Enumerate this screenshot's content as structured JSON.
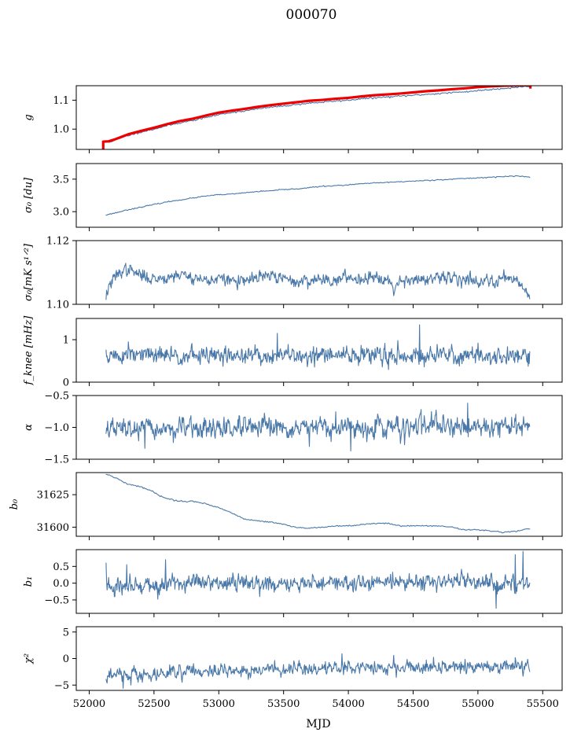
{
  "title": "000070",
  "xlabel": "MJD",
  "colors": {
    "series": "#4a78a8",
    "overlay": "#ee0000"
  },
  "chart_data": [
    {
      "type": "line",
      "key": "g",
      "ylabel": "g",
      "xlim": [
        51900,
        55650
      ],
      "ylim": [
        0.93,
        1.15
      ],
      "yticks": [
        1.0,
        1.1
      ],
      "ytick_labels": [
        "1.0",
        "1.1"
      ],
      "grid": false,
      "series": [
        {
          "color": "#4a78a8",
          "style": "smooth",
          "x": [
            52110,
            52150,
            52200,
            52300,
            52400,
            52500,
            52600,
            52700,
            52800,
            52900,
            53000,
            53100,
            53200,
            53300,
            53400,
            53500,
            53600,
            53700,
            53800,
            53900,
            54000,
            54100,
            54200,
            54300,
            54400,
            54500,
            54600,
            54700,
            54800,
            54900,
            55000,
            55100,
            55200,
            55300,
            55400
          ],
          "y": [
            0.955,
            0.955,
            0.962,
            0.978,
            0.99,
            1.0,
            1.012,
            1.022,
            1.03,
            1.04,
            1.05,
            1.058,
            1.063,
            1.07,
            1.076,
            1.08,
            1.085,
            1.09,
            1.093,
            1.097,
            1.1,
            1.105,
            1.108,
            1.111,
            1.114,
            1.117,
            1.12,
            1.123,
            1.126,
            1.129,
            1.133,
            1.137,
            1.141,
            1.145,
            1.148
          ],
          "noise": 0.0015,
          "seed": 11
        },
        {
          "color": "#ee0000",
          "style": "thick",
          "x": [
            52110,
            52150,
            52200,
            52300,
            52400,
            52500,
            52600,
            52700,
            52800,
            52900,
            53000,
            53100,
            53200,
            53300,
            53400,
            53500,
            53600,
            53700,
            53800,
            53900,
            54000,
            54100,
            54200,
            54300,
            54400,
            54500,
            54600,
            54700,
            54800,
            54900,
            55000,
            55100,
            55200,
            55300,
            55400
          ],
          "y": [
            0.957,
            0.958,
            0.965,
            0.982,
            0.994,
            1.005,
            1.017,
            1.028,
            1.036,
            1.047,
            1.057,
            1.064,
            1.07,
            1.077,
            1.083,
            1.088,
            1.093,
            1.098,
            1.101,
            1.105,
            1.108,
            1.113,
            1.117,
            1.12,
            1.123,
            1.127,
            1.131,
            1.134,
            1.138,
            1.141,
            1.145,
            1.148,
            1.15,
            1.151,
            1.152
          ]
        }
      ],
      "spikes": [
        {
          "x": 52108,
          "y_from": 0.93,
          "y_to": 0.96,
          "color": "#ee0000"
        },
        {
          "x": 55405,
          "y_from": 1.14,
          "y_to": 1.15,
          "color": "#ee0000"
        }
      ]
    },
    {
      "type": "line",
      "key": "sigma0_du",
      "ylabel": "σ₀ [du]",
      "xlim": [
        51900,
        55650
      ],
      "ylim": [
        2.76,
        3.74
      ],
      "yticks": [
        3.0,
        3.5
      ],
      "ytick_labels": [
        "3.0",
        "3.5"
      ],
      "grid": false,
      "series": [
        {
          "color": "#4a78a8",
          "style": "smooth",
          "x": [
            52130,
            52200,
            52300,
            52400,
            52500,
            52600,
            52700,
            52800,
            52900,
            53000,
            53100,
            53200,
            53300,
            53400,
            53500,
            53600,
            53700,
            53800,
            53900,
            54000,
            54100,
            54200,
            54300,
            54400,
            54500,
            54600,
            54700,
            54800,
            54900,
            55000,
            55100,
            55200,
            55300,
            55400
          ],
          "y": [
            2.95,
            2.98,
            3.03,
            3.07,
            3.11,
            3.15,
            3.18,
            3.21,
            3.24,
            3.26,
            3.27,
            3.29,
            3.31,
            3.32,
            3.34,
            3.35,
            3.37,
            3.39,
            3.4,
            3.41,
            3.43,
            3.44,
            3.45,
            3.46,
            3.47,
            3.48,
            3.49,
            3.5,
            3.51,
            3.52,
            3.53,
            3.54,
            3.55,
            3.53
          ],
          "noise": 0.004,
          "seed": 23
        }
      ]
    },
    {
      "type": "line",
      "key": "sigma0_mk",
      "ylabel": "σ₀[mK s¹ᐟ²]",
      "xlim": [
        51900,
        55650
      ],
      "ylim": [
        1.1,
        1.12
      ],
      "yticks": [
        1.1,
        1.12
      ],
      "ytick_labels": [
        "1.10",
        "1.12"
      ],
      "grid": false,
      "series": [
        {
          "color": "#4a78a8",
          "style": "noisy",
          "x": [
            52130,
            52150,
            52200,
            52250,
            52300,
            52400,
            52500,
            52600,
            52700,
            52800,
            52900,
            53000,
            53100,
            53200,
            53300,
            53400,
            53500,
            53600,
            53700,
            53800,
            53900,
            54000,
            54100,
            54200,
            54300,
            54350,
            54400,
            54500,
            54600,
            54700,
            54800,
            54900,
            55000,
            55100,
            55200,
            55300,
            55350,
            55400
          ],
          "y": [
            1.1025,
            1.1055,
            1.1085,
            1.1105,
            1.111,
            1.109,
            1.108,
            1.1085,
            1.1095,
            1.1085,
            1.1075,
            1.108,
            1.1075,
            1.107,
            1.1085,
            1.109,
            1.108,
            1.107,
            1.1075,
            1.108,
            1.1075,
            1.1085,
            1.108,
            1.109,
            1.108,
            1.105,
            1.1075,
            1.108,
            1.1075,
            1.108,
            1.1085,
            1.108,
            1.1075,
            1.107,
            1.1085,
            1.108,
            1.105,
            1.103
          ],
          "noise": 0.0009,
          "samples": 820,
          "seed": 37
        }
      ]
    },
    {
      "type": "line",
      "key": "fknee",
      "ylabel": "f_knee [mHz]",
      "xlim": [
        51900,
        55650
      ],
      "ylim": [
        0,
        1.5
      ],
      "yticks": [
        0,
        1
      ],
      "ytick_labels": [
        "0",
        "1"
      ],
      "grid": false,
      "series": [
        {
          "color": "#4a78a8",
          "style": "noisy",
          "x": [
            52130,
            52500,
            53000,
            53500,
            54000,
            54500,
            55000,
            55400
          ],
          "y": [
            0.62,
            0.63,
            0.62,
            0.62,
            0.63,
            0.63,
            0.62,
            0.61
          ],
          "noise": 0.1,
          "samples": 820,
          "seed": 51
        }
      ],
      "peaks": [
        {
          "x": 52300,
          "y": 0.95
        },
        {
          "x": 53450,
          "y": 1.15
        },
        {
          "x": 54380,
          "y": 0.98
        },
        {
          "x": 54550,
          "y": 1.35
        },
        {
          "x": 55000,
          "y": 0.92
        }
      ]
    },
    {
      "type": "line",
      "key": "alpha",
      "ylabel": "α",
      "xlim": [
        51900,
        55650
      ],
      "ylim": [
        -1.5,
        -0.5
      ],
      "yticks": [
        -1.5,
        -1.0,
        -0.5
      ],
      "ytick_labels": [
        "−1.5",
        "−1.0",
        "−0.5"
      ],
      "grid": false,
      "series": [
        {
          "color": "#4a78a8",
          "style": "noisy",
          "x": [
            52130,
            52500,
            53000,
            53500,
            54000,
            54500,
            55000,
            55400
          ],
          "y": [
            -1.02,
            -1.03,
            -1.02,
            -1.02,
            -1.01,
            -0.99,
            -0.98,
            -0.97
          ],
          "noise": 0.075,
          "samples": 820,
          "seed": 67
        }
      ],
      "peaks": [
        {
          "x": 54920,
          "y": -0.62
        },
        {
          "x": 54560,
          "y": -0.72
        },
        {
          "x": 54020,
          "y": -1.37
        },
        {
          "x": 52430,
          "y": -1.33
        },
        {
          "x": 53700,
          "y": -1.3
        }
      ]
    },
    {
      "type": "line",
      "key": "b0",
      "ylabel": "b₀",
      "xlim": [
        51900,
        55650
      ],
      "ylim": [
        31593,
        31642
      ],
      "yticks": [
        31600,
        31625
      ],
      "ytick_labels": [
        "31600",
        "31625"
      ],
      "grid": false,
      "series": [
        {
          "color": "#4a78a8",
          "style": "smooth",
          "x": [
            52130,
            52200,
            52300,
            52400,
            52500,
            52550,
            52600,
            52700,
            52800,
            52900,
            53000,
            53100,
            53200,
            53300,
            53400,
            53500,
            53600,
            53700,
            53800,
            53900,
            54000,
            54100,
            54200,
            54300,
            54400,
            54500,
            54600,
            54700,
            54800,
            54900,
            55000,
            55100,
            55200,
            55300,
            55400
          ],
          "y": [
            31641,
            31638,
            31633,
            31631,
            31627,
            31624,
            31622,
            31620,
            31620,
            31618,
            31615,
            31611,
            31606,
            31605,
            31604,
            31602,
            31600,
            31599,
            31600,
            31601,
            31601,
            31602,
            31603,
            31603,
            31601,
            31601,
            31601,
            31601,
            31600,
            31598,
            31598,
            31597,
            31596,
            31597,
            31599
          ],
          "noise": 0.25,
          "seed": 79
        }
      ]
    },
    {
      "type": "line",
      "key": "b1",
      "ylabel": "b₁",
      "xlim": [
        51900,
        55650
      ],
      "ylim": [
        -0.9,
        1.0
      ],
      "yticks": [
        -0.5,
        0.0,
        0.5
      ],
      "ytick_labels": [
        "−0.5",
        "0.0",
        "0.5"
      ],
      "grid": false,
      "series": [
        {
          "color": "#4a78a8",
          "style": "noisy",
          "x": [
            52130,
            52300,
            52500,
            52700,
            53000,
            53300,
            53500,
            53800,
            54000,
            54300,
            54500,
            54800,
            55000,
            55200,
            55400
          ],
          "y": [
            -0.1,
            -0.12,
            -0.08,
            -0.05,
            0.02,
            0.0,
            -0.04,
            -0.02,
            0.02,
            0.03,
            0.05,
            0.04,
            0.02,
            0.0,
            0.0
          ],
          "noise": 0.12,
          "samples": 820,
          "seed": 91
        }
      ],
      "peaks": [
        {
          "x": 52130,
          "y": 0.6
        },
        {
          "x": 52290,
          "y": 0.55
        },
        {
          "x": 52590,
          "y": 0.7
        },
        {
          "x": 55290,
          "y": 0.85
        },
        {
          "x": 55350,
          "y": 0.95
        },
        {
          "x": 55140,
          "y": -0.75
        },
        {
          "x": 52540,
          "y": -0.35
        }
      ]
    },
    {
      "type": "line",
      "key": "chi2",
      "ylabel": "χ²",
      "xlim": [
        51900,
        55650
      ],
      "ylim": [
        -6,
        6
      ],
      "yticks": [
        -5,
        0,
        5
      ],
      "ytick_labels": [
        "−5",
        "0",
        "5"
      ],
      "grid": false,
      "series": [
        {
          "color": "#4a78a8",
          "style": "noisy",
          "x": [
            52130,
            52300,
            52500,
            52700,
            53000,
            53300,
            53500,
            53800,
            54000,
            54300,
            54500,
            54800,
            55000,
            55200,
            55400
          ],
          "y": [
            -3.2,
            -3.0,
            -2.8,
            -2.6,
            -2.4,
            -2.1,
            -2.0,
            -1.8,
            -1.8,
            -1.7,
            -1.7,
            -1.6,
            -1.6,
            -1.5,
            -1.5
          ],
          "noise": 0.6,
          "samples": 820,
          "seed": 103
        }
      ],
      "peaks": [
        {
          "x": 52260,
          "y": -5.6
        },
        {
          "x": 52320,
          "y": -5.0
        },
        {
          "x": 53950,
          "y": 0.9
        },
        {
          "x": 54350,
          "y": 0.6
        }
      ]
    }
  ],
  "xaxis": {
    "ticks": [
      52000,
      52500,
      53000,
      53500,
      54000,
      54500,
      55000,
      55500
    ],
    "tick_labels": [
      "52000",
      "52500",
      "53000",
      "53500",
      "54000",
      "54500",
      "55000",
      "55500"
    ]
  }
}
